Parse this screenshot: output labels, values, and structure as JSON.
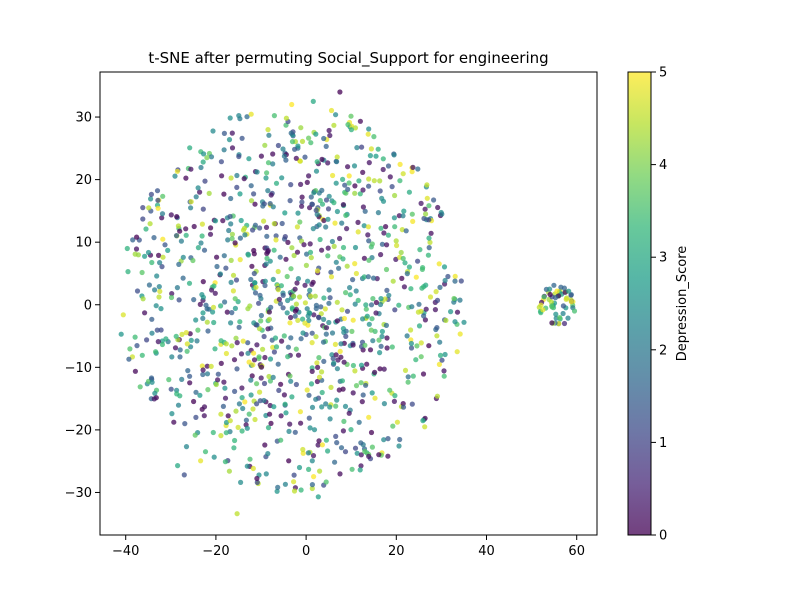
{
  "chart_data": {
    "type": "scatter",
    "title": "t-SNE after permuting Social_Support for engineering",
    "xlabel": "",
    "ylabel": "",
    "xlim": [
      -45.7,
      64.5
    ],
    "ylim": [
      -36.8,
      37.2
    ],
    "xticks": [
      -40,
      -20,
      0,
      20,
      40,
      60
    ],
    "yticks": [
      -30,
      -20,
      -10,
      0,
      10,
      20,
      30
    ],
    "xtick_labels": [
      "−40",
      "−20",
      "0",
      "20",
      "40",
      "60"
    ],
    "ytick_labels": [
      "−30",
      "−20",
      "−10",
      "0",
      "10",
      "20",
      "30"
    ],
    "grid": false,
    "colormap": "viridis",
    "point_alpha": 0.75,
    "colorbar": {
      "label": "Depression_Score",
      "range": [
        0,
        5
      ],
      "ticks": [
        0,
        1,
        2,
        3,
        4,
        5
      ],
      "tick_labels": [
        "0",
        "1",
        "2",
        "3",
        "4",
        "5"
      ]
    },
    "main_cluster": {
      "center": [
        -3,
        1
      ],
      "radius_x": 38,
      "radius_y": 31,
      "approx_count": 1100
    },
    "side_cluster": {
      "center": [
        55.5,
        0
      ],
      "radius_x": 4,
      "radius_y": 3.2,
      "approx_count": 55
    },
    "points": [
      {
        "x": 7.5,
        "y": 34.0,
        "c": 0
      },
      {
        "x": 1.6,
        "y": 32.5,
        "c": 3
      },
      {
        "x": -3.2,
        "y": 32.0,
        "c": 5
      },
      {
        "x": 12.3,
        "y": 25.2,
        "c": 1
      },
      {
        "x": -15.3,
        "y": -33.4,
        "c": 4.5
      },
      {
        "x": 2.7,
        "y": -30.7,
        "c": 2.8
      },
      {
        "x": -41.0,
        "y": -4.7,
        "c": 2.6
      },
      {
        "x": -39.5,
        "y": 5.3,
        "c": 3.2
      },
      {
        "x": -39.3,
        "y": -8.7,
        "c": 1.5
      },
      {
        "x": 35.0,
        "y": -2.8,
        "c": 2.5
      },
      {
        "x": 33.5,
        "y": -7.5,
        "c": 4.8
      },
      {
        "x": 32.8,
        "y": 1.0,
        "c": 3.8
      },
      {
        "x": 26.5,
        "y": 14.5,
        "c": 4.2
      },
      {
        "x": 26.3,
        "y": -19.5,
        "c": 4.6
      },
      {
        "x": 29.8,
        "y": -8.1,
        "c": 3.1
      },
      {
        "x": 31.0,
        "y": -2.5,
        "c": 4.4
      },
      {
        "x": -22.0,
        "y": 23.5,
        "c": 4
      },
      {
        "x": -14.2,
        "y": 26.6,
        "c": 1.3
      },
      {
        "x": -17.0,
        "y": -26.6,
        "c": 4.3
      },
      {
        "x": -28.5,
        "y": -25.7,
        "c": 3
      },
      {
        "x": -27.0,
        "y": -27.2,
        "c": 1.2
      },
      {
        "x": -4.6,
        "y": -28.7,
        "c": 2.2
      },
      {
        "x": -6.3,
        "y": -29.2,
        "c": 1.8
      },
      {
        "x": 10.2,
        "y": -26.3,
        "c": 3.5
      },
      {
        "x": 12.0,
        "y": -26.4,
        "c": 2.9
      },
      {
        "x": 54.0,
        "y": 2.5,
        "c": 2.4
      },
      {
        "x": 56.5,
        "y": 2.8,
        "c": 1.6
      },
      {
        "x": 58.8,
        "y": 0.5,
        "c": 4.9
      },
      {
        "x": 52.5,
        "y": -0.8,
        "c": 4.8
      },
      {
        "x": 57.3,
        "y": -3.0,
        "c": 0.6
      },
      {
        "x": 54.5,
        "y": -2.9,
        "c": 0.2
      },
      {
        "x": 59.5,
        "y": -1.0,
        "c": 3.5
      }
    ]
  }
}
